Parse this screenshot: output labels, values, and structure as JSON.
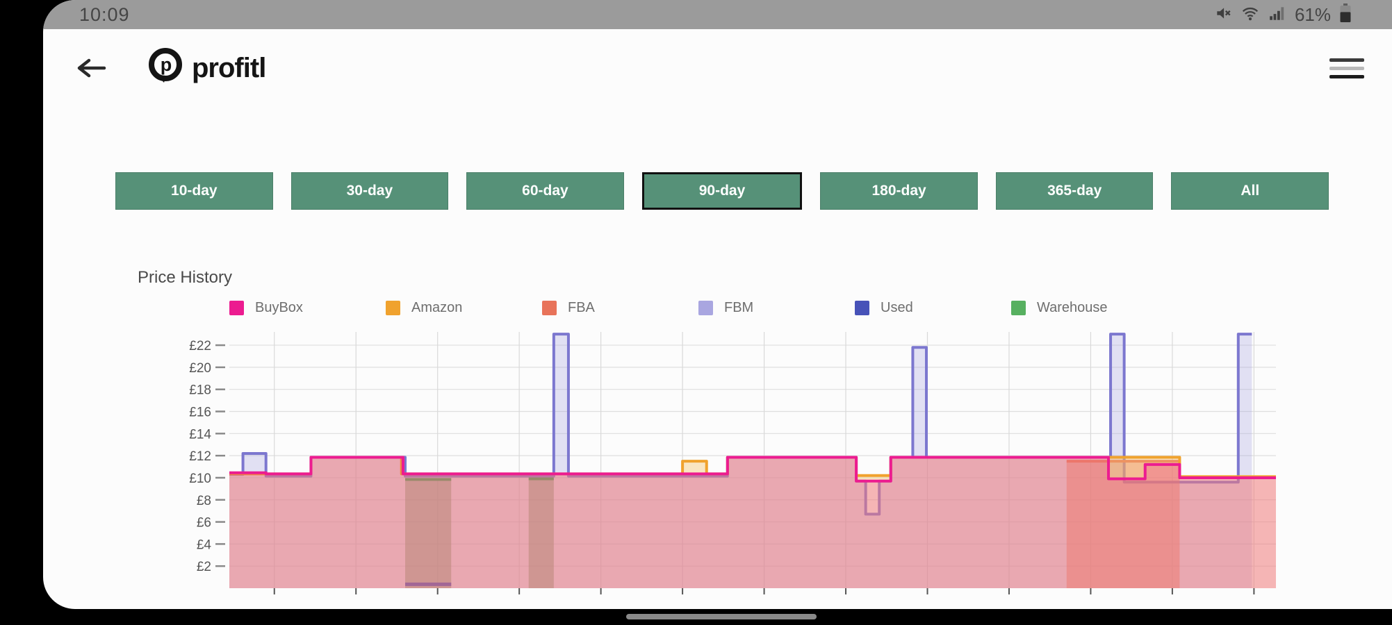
{
  "status_bar": {
    "time": "10:09",
    "battery_percent": "61%",
    "icons": [
      "mute-icon",
      "wifi-icon",
      "signal-icon",
      "battery-icon"
    ]
  },
  "header": {
    "brand": "profitl",
    "back_label": "back",
    "menu_label": "menu"
  },
  "range_buttons": {
    "accent_color": "#569178",
    "items": [
      {
        "label": "10-day",
        "selected": false
      },
      {
        "label": "30-day",
        "selected": false
      },
      {
        "label": "60-day",
        "selected": false
      },
      {
        "label": "90-day",
        "selected": true
      },
      {
        "label": "180-day",
        "selected": false
      },
      {
        "label": "365-day",
        "selected": false
      },
      {
        "label": "All",
        "selected": false
      }
    ]
  },
  "chart": {
    "title": "Price History",
    "legend": [
      {
        "label": "BuyBox",
        "color": "#ec1c90"
      },
      {
        "label": "Amazon",
        "color": "#f0a22e"
      },
      {
        "label": "FBA",
        "color": "#e8735a"
      },
      {
        "label": "FBM",
        "color": "#a9a6e0"
      },
      {
        "label": "Used",
        "color": "#4752b8"
      },
      {
        "label": "Warehouse",
        "color": "#57b060"
      }
    ]
  },
  "chart_data": {
    "type": "line",
    "subtype": "step-area",
    "currency": "£",
    "ylim": [
      0,
      23.2
    ],
    "yticks": [
      2,
      4,
      6,
      8,
      10,
      12,
      14,
      16,
      18,
      20,
      22
    ],
    "x_axis_labels_visible": false,
    "grid": true,
    "x_gridlines_pct": [
      4.3,
      12.1,
      19.9,
      27.7,
      35.5,
      43.3,
      51.1,
      58.9,
      66.7,
      74.5,
      82.3,
      90.1,
      97.9
    ],
    "legend_position": "top",
    "series": [
      {
        "name": "FBM",
        "stroke": "#7c77cf",
        "fill": "rgba(169,166,224,0.32)",
        "width": 4,
        "segments": [
          [
            0,
            1.3,
            10.3
          ],
          [
            1.3,
            3.5,
            12.2
          ],
          [
            3.5,
            7.8,
            10.15
          ],
          [
            7.8,
            16.8,
            11.85
          ],
          [
            16.8,
            31.0,
            10.15
          ],
          [
            31.0,
            32.4,
            23.0
          ],
          [
            32.4,
            47.6,
            10.15
          ],
          [
            47.6,
            59.9,
            11.85
          ],
          [
            59.9,
            60.8,
            9.7
          ],
          [
            60.8,
            62.1,
            6.7
          ],
          [
            62.1,
            63.2,
            9.7
          ],
          [
            63.2,
            65.3,
            11.85
          ],
          [
            65.3,
            66.6,
            21.8
          ],
          [
            66.6,
            84.2,
            11.85
          ],
          [
            84.2,
            85.5,
            23.0
          ],
          [
            85.5,
            96.4,
            9.6
          ],
          [
            96.4,
            97.7,
            23.0
          ]
        ]
      },
      {
        "name": "FBA",
        "stroke": "#e8735a",
        "fill": "rgba(233,120,95,0.5)",
        "width": 4,
        "segments": [
          [
            80.0,
            90.8,
            11.5
          ]
        ]
      },
      {
        "name": "Warehouse",
        "stroke": "#2e9e57",
        "fill": "rgba(100,140,95,0.45)",
        "width": 4,
        "segments": [
          [
            16.8,
            21.2,
            9.85
          ],
          [
            28.6,
            31.0,
            9.9
          ]
        ]
      },
      {
        "name": "Used",
        "stroke": "#4752b8",
        "fill": null,
        "width": 5,
        "segments": [
          [
            16.8,
            21.2,
            0.35
          ]
        ]
      },
      {
        "name": "Amazon",
        "stroke": "#f0a22e",
        "fill": "rgba(246,196,108,0.4)",
        "width": 4,
        "segments": [
          [
            0,
            7.8,
            10.35
          ],
          [
            7.8,
            16.45,
            11.85
          ],
          [
            16.45,
            43.3,
            10.35
          ],
          [
            43.3,
            45.6,
            11.5
          ],
          [
            45.6,
            47.6,
            10.35
          ],
          [
            47.6,
            59.9,
            11.85
          ],
          [
            59.9,
            63.2,
            10.2
          ],
          [
            63.2,
            90.8,
            11.85
          ],
          [
            90.8,
            100,
            10.1
          ]
        ]
      },
      {
        "name": "BuyBox",
        "stroke": "#ec1c90",
        "fill": "rgba(236,28,144,0.24)",
        "width": 4,
        "segments": [
          [
            0,
            3.5,
            10.45
          ],
          [
            3.5,
            7.8,
            10.35
          ],
          [
            7.8,
            16.6,
            11.85
          ],
          [
            16.6,
            47.6,
            10.35
          ],
          [
            47.6,
            59.9,
            11.85
          ],
          [
            59.9,
            63.2,
            9.7
          ],
          [
            63.2,
            84.0,
            11.85
          ],
          [
            84.0,
            87.5,
            9.9
          ],
          [
            87.5,
            90.8,
            11.2
          ],
          [
            90.8,
            100,
            10.0
          ]
        ]
      }
    ]
  }
}
